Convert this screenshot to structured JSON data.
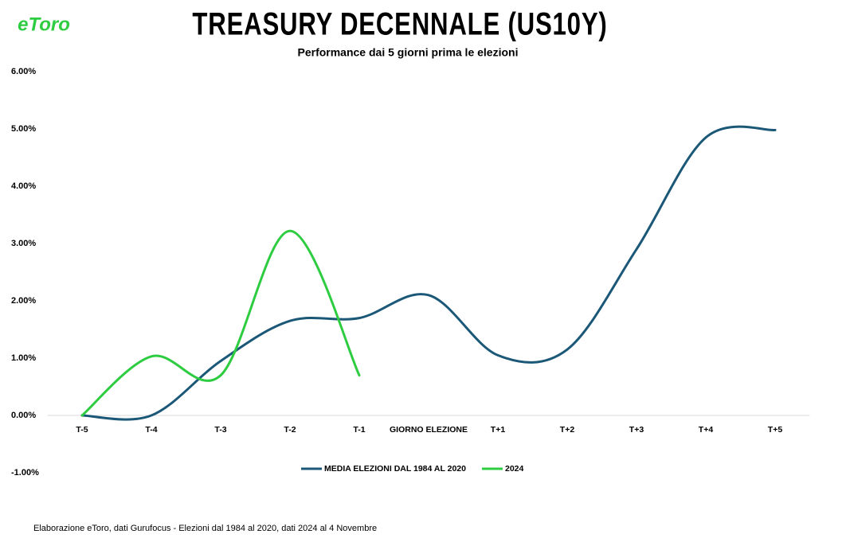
{
  "logo": "eToro",
  "footer": "Elaborazione eToro, dati Gurufocus - Elezioni dal 1984 al 2020, dati 2024 al 4 Novembre",
  "chart_data": {
    "type": "line",
    "title": "TREASURY DECENNALE (US10Y)",
    "subtitle": "Performance dai 5 giorni prima le elezioni",
    "categories": [
      "T-5",
      "T-4",
      "T-3",
      "T-2",
      "T-1",
      "GIORNO ELEZIONE",
      "T+1",
      "T+2",
      "T+3",
      "T+4",
      "T+5"
    ],
    "series": [
      {
        "name": "MEDIA ELEZIONI DAL 1984 AL 2020",
        "color": "#1b5878",
        "values": [
          0.0,
          0.0,
          0.95,
          1.65,
          1.7,
          2.1,
          1.05,
          1.15,
          2.9,
          4.85,
          4.98
        ]
      },
      {
        "name": "2024",
        "color": "#2ecc40",
        "values": [
          0.0,
          1.03,
          0.7,
          3.22,
          0.7,
          null,
          null,
          null,
          null,
          null,
          null
        ]
      }
    ],
    "ylim": [
      -1,
      6
    ],
    "yticks": [
      {
        "value": -1,
        "label": "-1.00%"
      },
      {
        "value": 0,
        "label": "0.00%"
      },
      {
        "value": 1,
        "label": "1.00%"
      },
      {
        "value": 2,
        "label": "2.00%"
      },
      {
        "value": 3,
        "label": "3.00%"
      },
      {
        "value": 4,
        "label": "4.00%"
      },
      {
        "value": 5,
        "label": "5.00%"
      },
      {
        "value": 6,
        "label": "6.00%"
      }
    ],
    "grid": false,
    "legend": "bottom"
  }
}
